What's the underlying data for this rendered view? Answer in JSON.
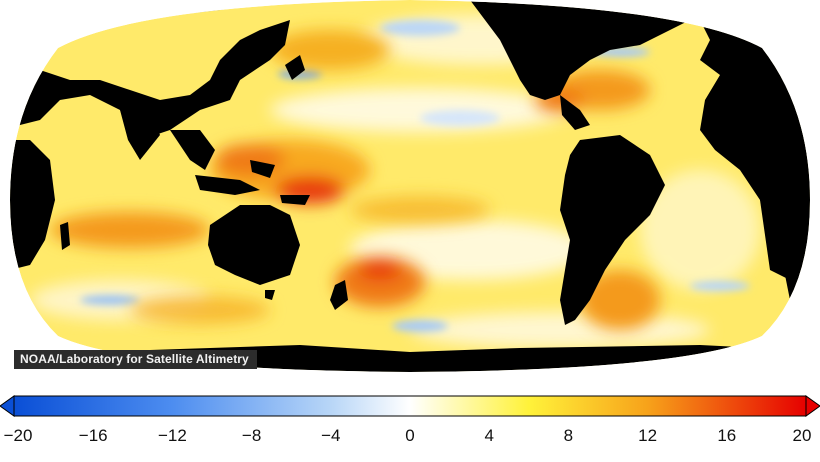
{
  "credit": "NOAA/Laboratory for Satellite Altimetry",
  "colorbar": {
    "min": -20,
    "max": 20,
    "ticks": [
      -20,
      -16,
      -12,
      -8,
      -4,
      0,
      4,
      8,
      12,
      16,
      20
    ],
    "tick_labels": [
      "−20",
      "−16",
      "−12",
      "−8",
      "−4",
      "0",
      "4",
      "8",
      "12",
      "16",
      "20"
    ],
    "colors": {
      "min_end": "#0a4fd6",
      "low": "#4d8df0",
      "mid_low": "#b8d6f7",
      "zero": "#ffffff",
      "mid_high": "#fff23a",
      "high": "#f7a21a",
      "max_end": "#e60000"
    }
  },
  "map": {
    "land_color": "#000000",
    "ocean_base_color": "#ffe45a"
  }
}
